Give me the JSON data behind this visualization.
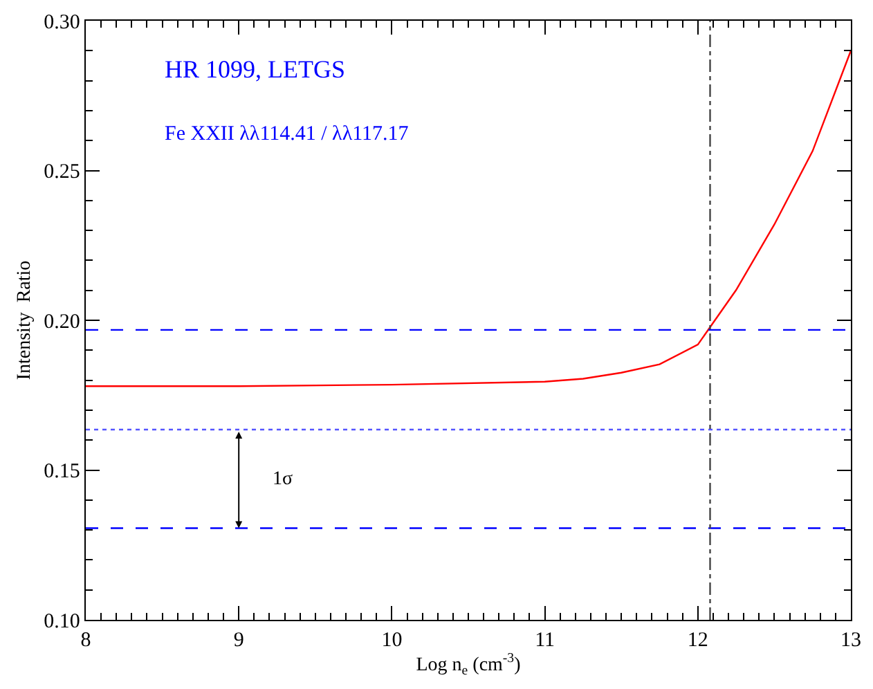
{
  "chart_data": {
    "type": "line",
    "xlabel": "Log n$_{e}$ (cm$^{-3}$)",
    "ylabel": "Intensity  Ratio",
    "x": [
      8,
      9,
      10,
      11,
      11.25,
      11.5,
      11.75,
      12,
      12.25,
      12.5,
      12.75,
      13
    ],
    "series": [
      {
        "color": "#ff0000",
        "values": [
          0.178,
          0.178,
          0.1785,
          0.1795,
          0.1805,
          0.1825,
          0.1853,
          0.1919,
          0.2101,
          0.232,
          0.2565,
          0.29
        ]
      }
    ],
    "xlim": [
      8,
      13
    ],
    "xticks": [
      8,
      9,
      10,
      11,
      12,
      13
    ],
    "ylim": [
      0.1,
      0.3
    ],
    "yticks": [
      {
        "value": 0.1,
        "label": "0.10"
      },
      {
        "value": 0.15,
        "label": "0.15"
      },
      {
        "value": 0.2,
        "label": "0.20"
      },
      {
        "value": 0.25,
        "label": "0.25"
      },
      {
        "value": 0.3,
        "label": "0.30"
      }
    ],
    "ref_lines": [
      {
        "axis": "y",
        "value": 0.1968,
        "color": "#0000ff",
        "line_style": "dashed"
      },
      {
        "axis": "y",
        "value": 0.1635,
        "color": "#5555ff",
        "line_style": "dotted"
      },
      {
        "axis": "y",
        "value": 0.1306,
        "color": "#0000ff",
        "line_style": "dashed"
      },
      {
        "axis": "x",
        "value": 12.08,
        "color": "#444444",
        "line_style": "dashdot"
      }
    ],
    "annotations": [
      "HR 1099, LETGS",
      "Fe XXII λλ114.41 / λλ117.17",
      "1σ"
    ],
    "marker": "none",
    "line_style": "solid"
  }
}
